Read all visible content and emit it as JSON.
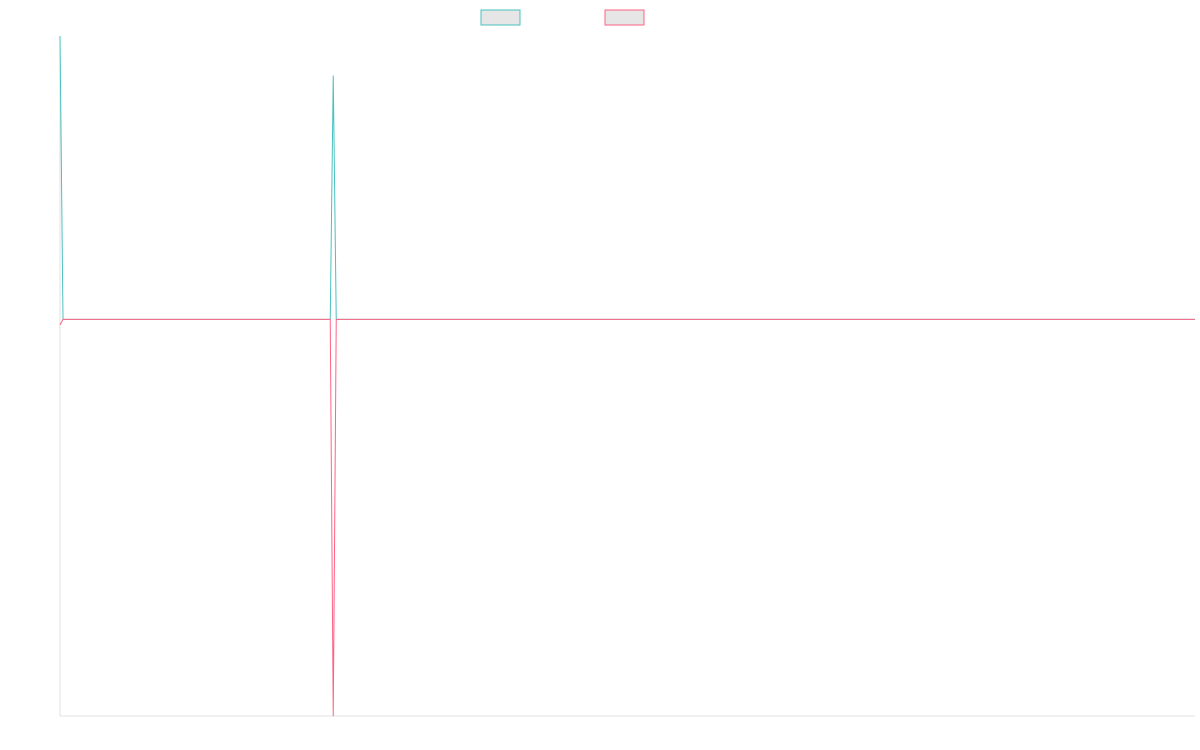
{
  "chart_data": {
    "type": "line",
    "x": [
      0,
      1,
      90,
      91,
      92,
      378
    ],
    "xlim": [
      0,
      378
    ],
    "ylim": [
      -1.4,
      1
    ],
    "series": [
      {
        "color": "#4bc0c0",
        "values": [
          1,
          0,
          0,
          0.86,
          0,
          0
        ]
      },
      {
        "color": "#ff6384",
        "values": [
          -0.02,
          0,
          0,
          -1.4,
          0,
          0
        ]
      }
    ]
  }
}
